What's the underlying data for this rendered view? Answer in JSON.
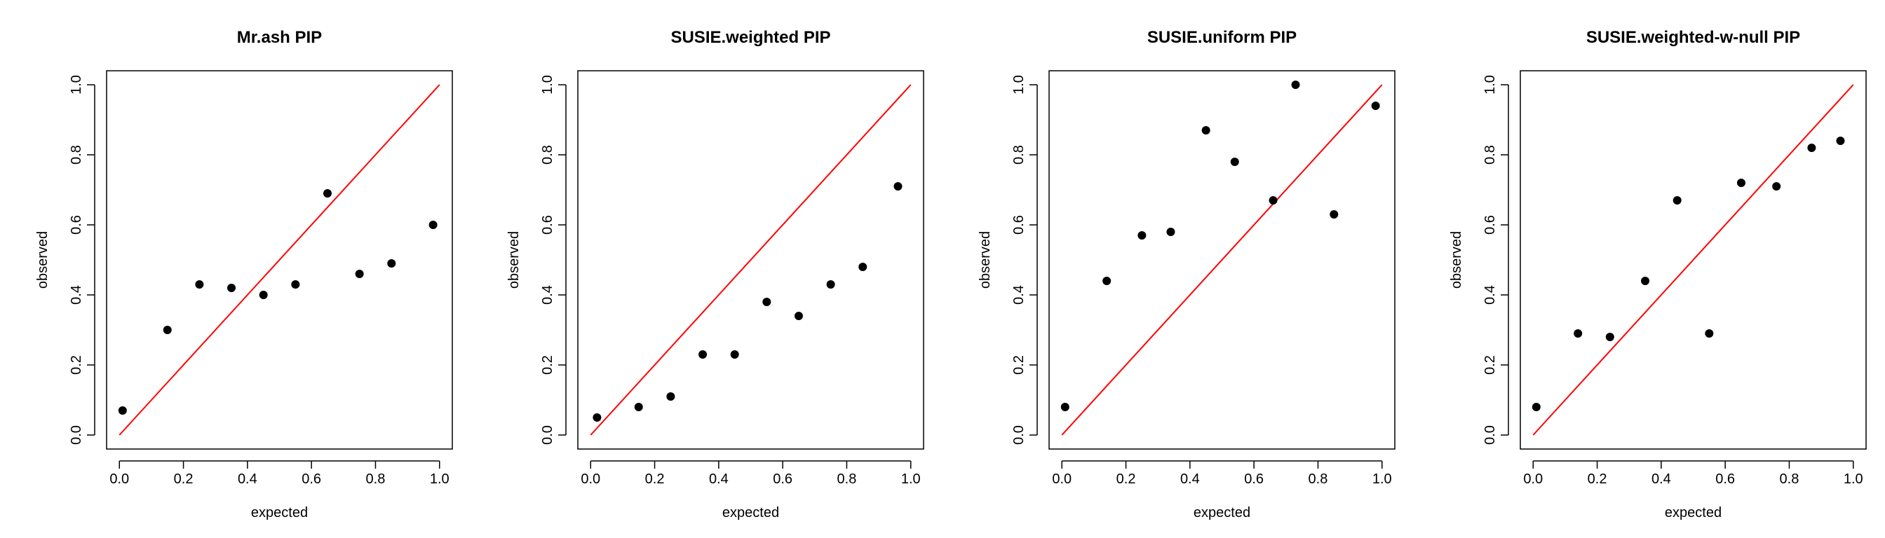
{
  "chart_data": [
    {
      "type": "scatter",
      "title": "Mr.ash PIP",
      "xlabel": "expected",
      "ylabel": "observed",
      "xlim": [
        0,
        1
      ],
      "ylim": [
        0,
        1
      ],
      "xticks": [
        "0.0",
        "0.2",
        "0.4",
        "0.6",
        "0.8",
        "1.0"
      ],
      "yticks": [
        "0.0",
        "0.2",
        "0.4",
        "0.6",
        "0.8",
        "1.0"
      ],
      "x": [
        0.01,
        0.15,
        0.25,
        0.35,
        0.45,
        0.55,
        0.65,
        0.75,
        0.85,
        0.98
      ],
      "y": [
        0.07,
        0.3,
        0.43,
        0.42,
        0.4,
        0.43,
        0.69,
        0.46,
        0.49,
        0.6
      ],
      "reference_line": {
        "from": [
          0,
          0
        ],
        "to": [
          1,
          1
        ],
        "color": "#ff0000"
      },
      "point_color": "#000000"
    },
    {
      "type": "scatter",
      "title": "SUSIE.weighted PIP",
      "xlabel": "expected",
      "ylabel": "observed",
      "xlim": [
        0,
        1
      ],
      "ylim": [
        0,
        1
      ],
      "xticks": [
        "0.0",
        "0.2",
        "0.4",
        "0.6",
        "0.8",
        "1.0"
      ],
      "yticks": [
        "0.0",
        "0.2",
        "0.4",
        "0.6",
        "0.8",
        "1.0"
      ],
      "x": [
        0.02,
        0.15,
        0.25,
        0.35,
        0.45,
        0.55,
        0.65,
        0.75,
        0.85,
        0.96
      ],
      "y": [
        0.05,
        0.08,
        0.11,
        0.23,
        0.23,
        0.38,
        0.34,
        0.43,
        0.48,
        0.71
      ],
      "reference_line": {
        "from": [
          0,
          0
        ],
        "to": [
          1,
          1
        ],
        "color": "#ff0000"
      },
      "point_color": "#000000"
    },
    {
      "type": "scatter",
      "title": "SUSIE.uniform PIP",
      "xlabel": "expected",
      "ylabel": "observed",
      "xlim": [
        0,
        1
      ],
      "ylim": [
        0,
        1
      ],
      "xticks": [
        "0.0",
        "0.2",
        "0.4",
        "0.6",
        "0.8",
        "1.0"
      ],
      "yticks": [
        "0.0",
        "0.2",
        "0.4",
        "0.6",
        "0.8",
        "1.0"
      ],
      "x": [
        0.01,
        0.14,
        0.25,
        0.34,
        0.45,
        0.54,
        0.66,
        0.73,
        0.85,
        0.98
      ],
      "y": [
        0.08,
        0.44,
        0.57,
        0.58,
        0.87,
        0.78,
        0.67,
        1.0,
        0.63,
        0.94
      ],
      "reference_line": {
        "from": [
          0,
          0
        ],
        "to": [
          1,
          1
        ],
        "color": "#ff0000"
      },
      "point_color": "#000000"
    },
    {
      "type": "scatter",
      "title": "SUSIE.weighted-w-null PIP",
      "xlabel": "expected",
      "ylabel": "observed",
      "xlim": [
        0,
        1
      ],
      "ylim": [
        0,
        1
      ],
      "xticks": [
        "0.0",
        "0.2",
        "0.4",
        "0.6",
        "0.8",
        "1.0"
      ],
      "yticks": [
        "0.0",
        "0.2",
        "0.4",
        "0.6",
        "0.8",
        "1.0"
      ],
      "x": [
        0.01,
        0.14,
        0.24,
        0.35,
        0.45,
        0.55,
        0.65,
        0.76,
        0.87,
        0.96
      ],
      "y": [
        0.08,
        0.29,
        0.28,
        0.44,
        0.67,
        0.29,
        0.72,
        0.71,
        0.82,
        0.84
      ],
      "reference_line": {
        "from": [
          0,
          0
        ],
        "to": [
          1,
          1
        ],
        "color": "#ff0000"
      },
      "point_color": "#000000"
    }
  ]
}
